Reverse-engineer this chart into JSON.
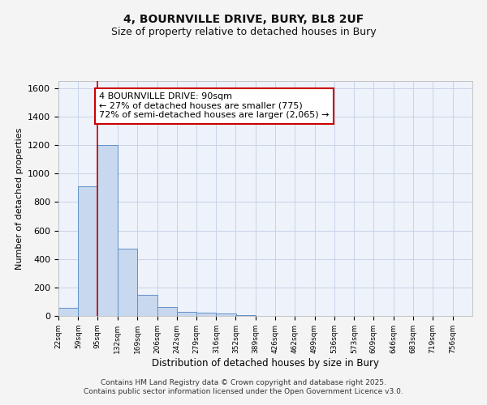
{
  "title_line1": "4, BOURNVILLE DRIVE, BURY, BL8 2UF",
  "title_line2": "Size of property relative to detached houses in Bury",
  "xlabel": "Distribution of detached houses by size in Bury",
  "ylabel": "Number of detached properties",
  "bar_left_edges": [
    22,
    59,
    95,
    132,
    169,
    206,
    242,
    279,
    316,
    352,
    389,
    426,
    462,
    499,
    536,
    573,
    609,
    646,
    683,
    719
  ],
  "bar_heights": [
    55,
    910,
    1200,
    475,
    150,
    60,
    30,
    20,
    15,
    5,
    0,
    0,
    0,
    0,
    0,
    0,
    0,
    0,
    0,
    0
  ],
  "bin_width": 37,
  "bar_color": "#c8d8ee",
  "bar_edge_color": "#6090c8",
  "property_line_x": 95,
  "annotation_text": "4 BOURNVILLE DRIVE: 90sqm\n← 27% of detached houses are smaller (775)\n72% of semi-detached houses are larger (2,065) →",
  "annotation_box_color": "#ffffff",
  "annotation_box_edge_color": "#cc0000",
  "red_line_color": "#cc0000",
  "ylim": [
    0,
    1650
  ],
  "yticks": [
    0,
    200,
    400,
    600,
    800,
    1000,
    1200,
    1400,
    1600
  ],
  "xtick_labels": [
    "22sqm",
    "59sqm",
    "95sqm",
    "132sqm",
    "169sqm",
    "206sqm",
    "242sqm",
    "279sqm",
    "316sqm",
    "352sqm",
    "389sqm",
    "426sqm",
    "462sqm",
    "499sqm",
    "536sqm",
    "573sqm",
    "609sqm",
    "646sqm",
    "683sqm",
    "719sqm",
    "756sqm"
  ],
  "xtick_positions": [
    22,
    59,
    95,
    132,
    169,
    206,
    242,
    279,
    316,
    352,
    389,
    426,
    462,
    499,
    536,
    573,
    609,
    646,
    683,
    719,
    756
  ],
  "grid_color": "#c8d4e8",
  "bg_color": "#eef2fa",
  "fig_bg_color": "#f4f4f4",
  "footer_text": "Contains HM Land Registry data © Crown copyright and database right 2025.\nContains public sector information licensed under the Open Government Licence v3.0.",
  "title_fontsize": 10,
  "subtitle_fontsize": 9,
  "annotation_fontsize": 8,
  "footer_fontsize": 6.5,
  "ylabel_fontsize": 8,
  "xlabel_fontsize": 8.5,
  "ytick_fontsize": 8,
  "xtick_fontsize": 6.5
}
